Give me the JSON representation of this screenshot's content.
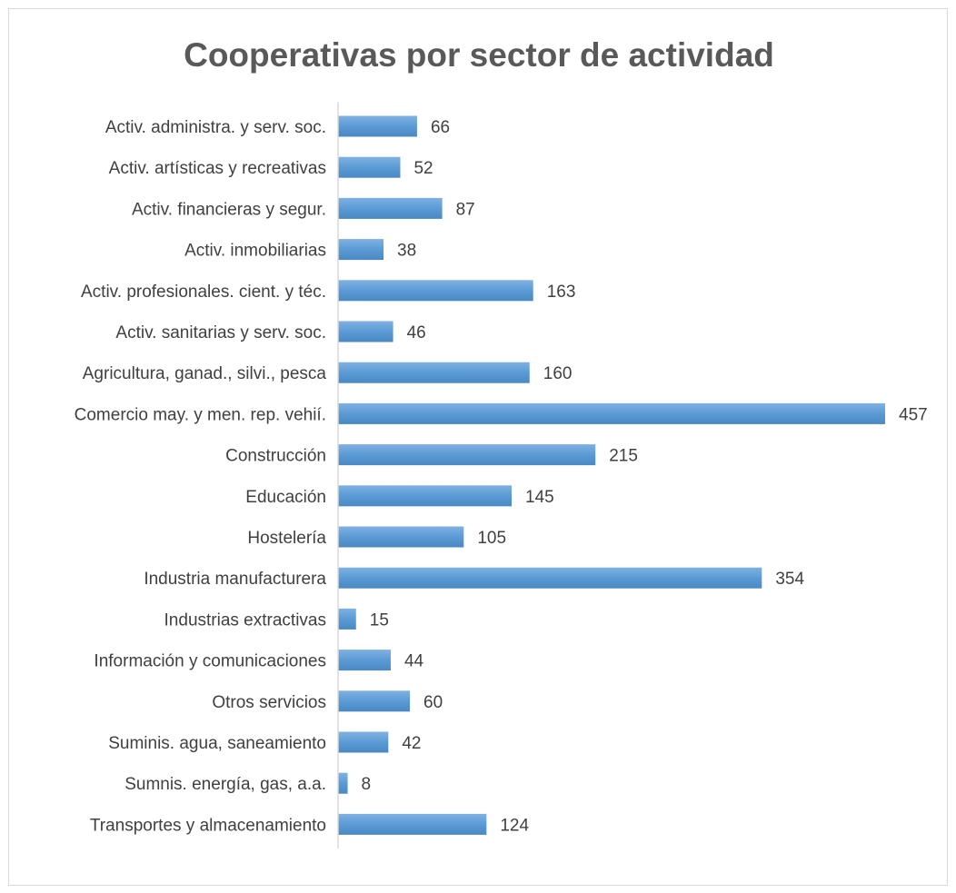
{
  "chart_data": {
    "type": "bar",
    "orientation": "horizontal",
    "title": "Cooperativas por sector de actividad",
    "xlabel": "",
    "ylabel": "",
    "xlim": [
      0,
      457
    ],
    "grid": false,
    "legend": "none",
    "bar_color": "#5b9bd5",
    "categories": [
      "Activ. administra. y serv. soc.",
      "Activ. artísticas y recreativas",
      "Activ. financieras y segur.",
      "Activ. inmobiliarias",
      "Activ. profesionales. cient. y téc.",
      "Activ. sanitarias y serv. soc.",
      "Agricultura, ganad., silvi., pesca",
      "Comercio may. y men. rep. vehií.",
      "Construcción",
      "Educación",
      "Hostelería",
      "Industria manufacturera",
      "Industrias extractivas",
      "Información y comunicaciones",
      "Otros servicios",
      "Suminis. agua, saneamiento",
      "Sumnis. energía, gas, a.a.",
      "Transportes y almacenamiento"
    ],
    "values": [
      66,
      52,
      87,
      38,
      163,
      46,
      160,
      457,
      215,
      145,
      105,
      354,
      15,
      44,
      60,
      42,
      8,
      124
    ]
  }
}
